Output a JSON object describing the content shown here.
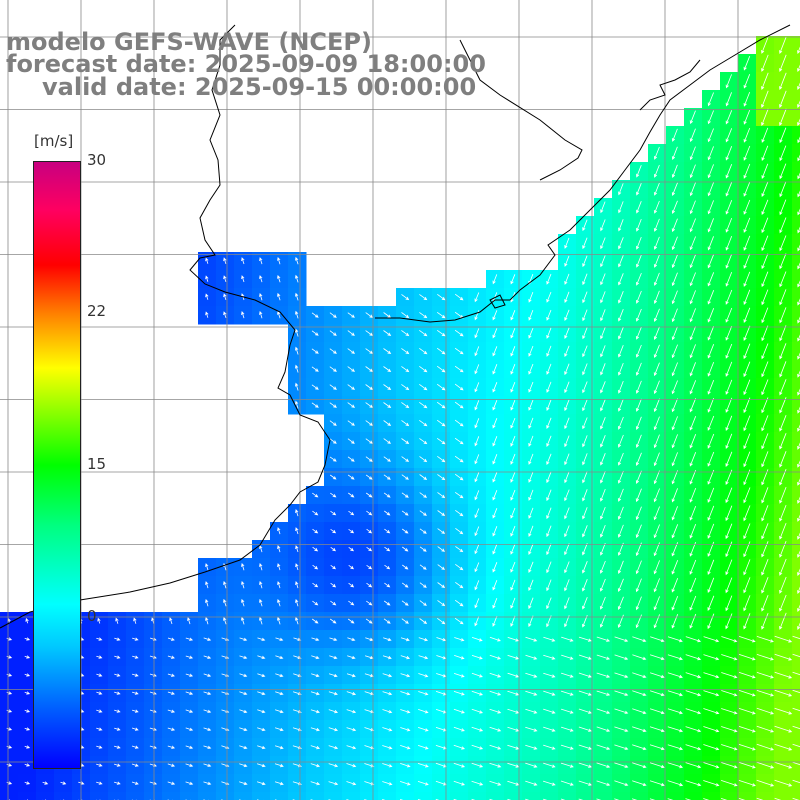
{
  "title": {
    "model": "modelo GEFS-WAVE (NCEP)",
    "forecast": "forecast date: 2025-09-09 18:00:00",
    "valid": "valid date: 2025-09-15 00:00:00"
  },
  "colorbar": {
    "units": "[m/s]",
    "ticks": [
      "30",
      "22",
      "15",
      "0"
    ],
    "colors": [
      "#0000ff",
      "#00ffff",
      "#00ff00",
      "#ffff00",
      "#ff0000",
      "#c80080"
    ]
  },
  "colors": {
    "land": "#ffffff",
    "grid": "#888888",
    "coast": "#000000",
    "arrow": "#ffffff",
    "title": "#7f7f7f"
  }
}
